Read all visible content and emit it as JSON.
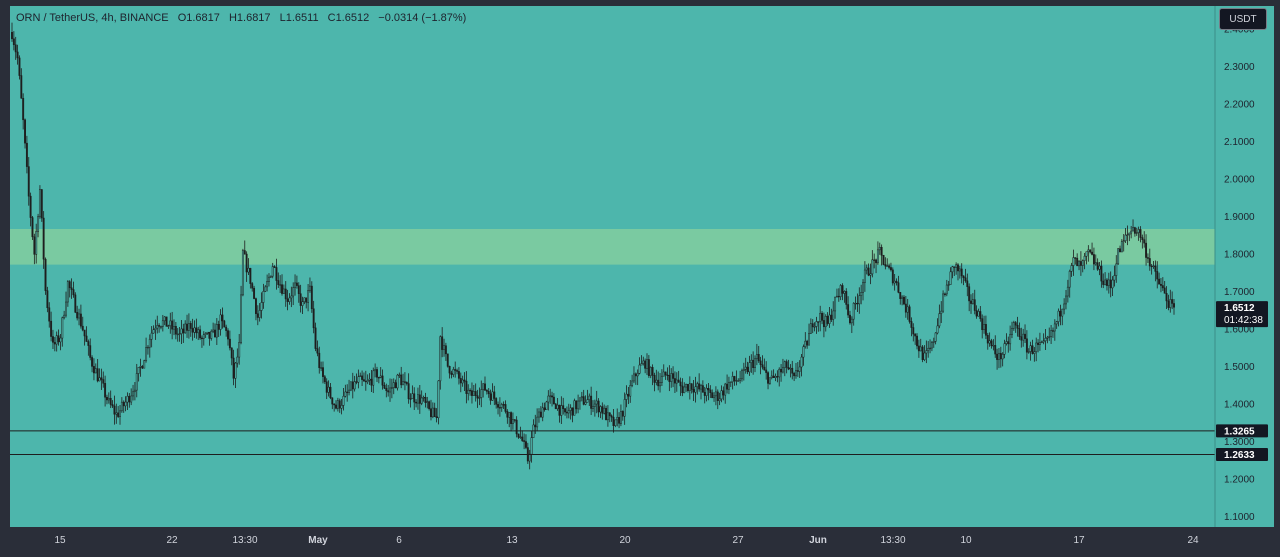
{
  "legend": {
    "symbol": "ORN / TetherUS, 4h, BINANCE",
    "open": "O1.6817",
    "high": "H1.6817",
    "low": "L1.6511",
    "close": "C1.6512",
    "change": "−0.0314 (−1.87%)"
  },
  "currency_label": "USDT",
  "colors": {
    "background": "#4db6ac",
    "zone": "#7fcca0",
    "candles": "#1e1e1e",
    "axis_text": "#1e222d",
    "label_bg": "#131722",
    "label_text": "#ffffff"
  },
  "chart_data": {
    "type": "candlestick",
    "symbol": "ORN/USDT",
    "interval": "4h",
    "exchange": "BINANCE",
    "ylim": [
      1.07,
      2.46
    ],
    "y_ticks": [
      "2.4000",
      "2.3000",
      "2.2000",
      "2.1000",
      "2.0000",
      "1.9000",
      "1.8000",
      "1.7000",
      "1.6000",
      "1.5000",
      "1.4000",
      "1.3000",
      "1.2000",
      "1.1000"
    ],
    "x_ticks": [
      "15",
      "22",
      "13:30",
      "May",
      "6",
      "13",
      "20",
      "27",
      "Jun",
      "13:30",
      "10",
      "17",
      "24"
    ],
    "zone": {
      "from": 1.77,
      "to": 1.865
    },
    "horizontal_lines": [
      1.3265,
      1.2633
    ],
    "price_labels": [
      {
        "value": 1.6512,
        "text": "1.6512",
        "countdown": "01:42:38"
      },
      {
        "value": 1.3265,
        "text": "1.3265"
      },
      {
        "value": 1.2633,
        "text": "1.2633"
      }
    ],
    "path": [
      [
        0,
        2.39
      ],
      [
        3,
        2.32
      ],
      [
        6,
        2.15
      ],
      [
        9,
        1.95
      ],
      [
        12,
        1.8
      ],
      [
        15,
        1.97
      ],
      [
        18,
        1.7
      ],
      [
        22,
        1.55
      ],
      [
        26,
        1.58
      ],
      [
        30,
        1.72
      ],
      [
        34,
        1.66
      ],
      [
        38,
        1.6
      ],
      [
        42,
        1.52
      ],
      [
        48,
        1.45
      ],
      [
        52,
        1.4
      ],
      [
        56,
        1.37
      ],
      [
        58,
        1.38
      ],
      [
        62,
        1.41
      ],
      [
        66,
        1.45
      ],
      [
        70,
        1.51
      ],
      [
        74,
        1.58
      ],
      [
        78,
        1.62
      ],
      [
        84,
        1.61
      ],
      [
        90,
        1.58
      ],
      [
        96,
        1.61
      ],
      [
        102,
        1.57
      ],
      [
        108,
        1.58
      ],
      [
        112,
        1.62
      ],
      [
        116,
        1.58
      ],
      [
        119,
        1.47
      ],
      [
        122,
        1.55
      ],
      [
        124,
        1.8
      ],
      [
        128,
        1.73
      ],
      [
        132,
        1.63
      ],
      [
        136,
        1.7
      ],
      [
        140,
        1.77
      ],
      [
        144,
        1.72
      ],
      [
        148,
        1.68
      ],
      [
        152,
        1.71
      ],
      [
        156,
        1.66
      ],
      [
        160,
        1.7
      ],
      [
        163,
        1.55
      ],
      [
        166,
        1.48
      ],
      [
        170,
        1.43
      ],
      [
        174,
        1.39
      ],
      [
        178,
        1.41
      ],
      [
        182,
        1.44
      ],
      [
        186,
        1.46
      ],
      [
        190,
        1.45
      ],
      [
        196,
        1.48
      ],
      [
        202,
        1.43
      ],
      [
        208,
        1.47
      ],
      [
        214,
        1.42
      ],
      [
        220,
        1.41
      ],
      [
        224,
        1.38
      ],
      [
        228,
        1.36
      ],
      [
        230,
        1.58
      ],
      [
        234,
        1.5
      ],
      [
        238,
        1.48
      ],
      [
        242,
        1.45
      ],
      [
        246,
        1.42
      ],
      [
        250,
        1.43
      ],
      [
        254,
        1.44
      ],
      [
        258,
        1.42
      ],
      [
        262,
        1.4
      ],
      [
        266,
        1.38
      ],
      [
        270,
        1.34
      ],
      [
        274,
        1.3
      ],
      [
        277,
        1.25
      ],
      [
        280,
        1.33
      ],
      [
        284,
        1.38
      ],
      [
        288,
        1.41
      ],
      [
        292,
        1.4
      ],
      [
        296,
        1.37
      ],
      [
        300,
        1.38
      ],
      [
        304,
        1.4
      ],
      [
        308,
        1.41
      ],
      [
        312,
        1.4
      ],
      [
        316,
        1.39
      ],
      [
        320,
        1.36
      ],
      [
        324,
        1.34
      ],
      [
        328,
        1.38
      ],
      [
        332,
        1.44
      ],
      [
        336,
        1.49
      ],
      [
        340,
        1.51
      ],
      [
        344,
        1.47
      ],
      [
        348,
        1.46
      ],
      [
        352,
        1.48
      ],
      [
        356,
        1.46
      ],
      [
        360,
        1.44
      ],
      [
        364,
        1.45
      ],
      [
        368,
        1.44
      ],
      [
        372,
        1.43
      ],
      [
        376,
        1.42
      ],
      [
        380,
        1.42
      ],
      [
        384,
        1.45
      ],
      [
        388,
        1.46
      ],
      [
        392,
        1.47
      ],
      [
        396,
        1.5
      ],
      [
        400,
        1.52
      ],
      [
        404,
        1.48
      ],
      [
        408,
        1.46
      ],
      [
        412,
        1.48
      ],
      [
        416,
        1.5
      ],
      [
        420,
        1.46
      ],
      [
        424,
        1.52
      ],
      [
        428,
        1.58
      ],
      [
        430,
        1.62
      ],
      [
        434,
        1.63
      ],
      [
        438,
        1.61
      ],
      [
        442,
        1.67
      ],
      [
        446,
        1.71
      ],
      [
        450,
        1.62
      ],
      [
        454,
        1.68
      ],
      [
        458,
        1.74
      ],
      [
        462,
        1.77
      ],
      [
        466,
        1.8
      ],
      [
        470,
        1.76
      ],
      [
        474,
        1.73
      ],
      [
        478,
        1.68
      ],
      [
        482,
        1.63
      ],
      [
        486,
        1.56
      ],
      [
        490,
        1.52
      ],
      [
        494,
        1.55
      ],
      [
        498,
        1.64
      ],
      [
        502,
        1.71
      ],
      [
        506,
        1.77
      ],
      [
        510,
        1.74
      ],
      [
        514,
        1.68
      ],
      [
        518,
        1.65
      ],
      [
        522,
        1.6
      ],
      [
        526,
        1.55
      ],
      [
        530,
        1.52
      ],
      [
        534,
        1.55
      ],
      [
        538,
        1.61
      ],
      [
        542,
        1.58
      ],
      [
        546,
        1.54
      ],
      [
        550,
        1.55
      ],
      [
        554,
        1.55
      ],
      [
        558,
        1.58
      ],
      [
        562,
        1.63
      ],
      [
        566,
        1.7
      ],
      [
        570,
        1.78
      ],
      [
        574,
        1.76
      ],
      [
        578,
        1.8
      ],
      [
        582,
        1.77
      ],
      [
        586,
        1.73
      ],
      [
        590,
        1.71
      ],
      [
        594,
        1.8
      ],
      [
        598,
        1.84
      ],
      [
        602,
        1.87
      ],
      [
        606,
        1.85
      ],
      [
        610,
        1.79
      ],
      [
        614,
        1.74
      ],
      [
        618,
        1.7
      ],
      [
        622,
        1.66
      ],
      [
        624,
        1.65
      ]
    ]
  }
}
